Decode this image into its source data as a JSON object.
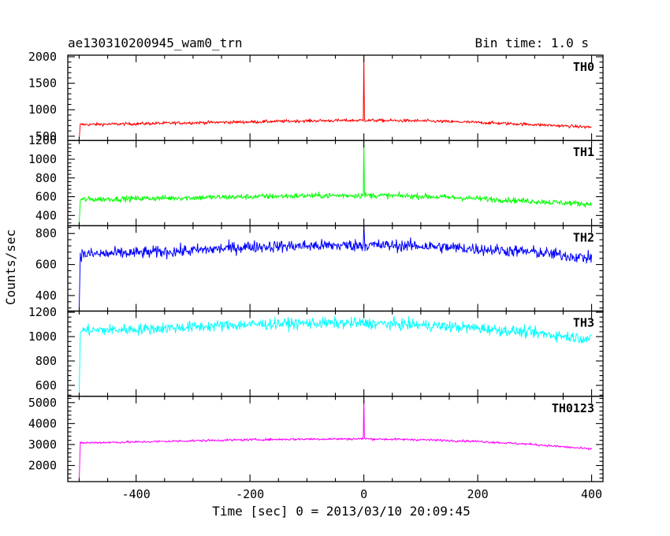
{
  "chart_data": {
    "type": "line",
    "title": "ae130310200945_wam0_trn",
    "subtitle": "Bin time: 1.0 s",
    "xlabel": "Time [sec] 0 = 2013/03/10 20:09:45",
    "ylabel": "Counts/sec",
    "xlim": [
      -520,
      420
    ],
    "xticks": [
      -400,
      -200,
      0,
      200,
      400
    ],
    "grid": false,
    "bin_time_s": 1.0,
    "panels": [
      {
        "name": "TH0",
        "color": "#ff0000",
        "ylim": [
          420,
          2030
        ],
        "yticks": [
          500,
          1000,
          1500,
          2000
        ],
        "data_start": -500,
        "start_value": 440,
        "profile": {
          "x": [
            -497,
            -400,
            -300,
            -200,
            -100,
            0,
            100,
            200,
            300,
            400
          ],
          "y": [
            720,
            735,
            755,
            770,
            790,
            800,
            790,
            760,
            720,
            670
          ]
        },
        "noise": 30,
        "spike": {
          "x": 0,
          "peak": 2030
        }
      },
      {
        "name": "TH1",
        "color": "#00ff00",
        "ylim": [
          290,
          1200
        ],
        "yticks": [
          400,
          600,
          800,
          1000,
          1200
        ],
        "data_start": -500,
        "start_value": 310,
        "profile": {
          "x": [
            -497,
            -400,
            -300,
            -200,
            -100,
            0,
            100,
            200,
            300,
            400
          ],
          "y": [
            570,
            580,
            590,
            600,
            610,
            615,
            605,
            580,
            550,
            520
          ]
        },
        "noise": 30,
        "spike": {
          "x": 0,
          "peak": 1200
        }
      },
      {
        "name": "TH2",
        "color": "#0000ff",
        "ylim": [
          300,
          850
        ],
        "yticks": [
          400,
          600,
          800
        ],
        "data_start": -500,
        "start_value": 310,
        "profile": {
          "x": [
            -497,
            -400,
            -300,
            -200,
            -100,
            0,
            100,
            200,
            300,
            400
          ],
          "y": [
            665,
            675,
            690,
            715,
            720,
            725,
            720,
            700,
            680,
            640
          ]
        },
        "noise": 38,
        "spike": {
          "x": 0,
          "peak": 850
        }
      },
      {
        "name": "TH3",
        "color": "#00ffff",
        "ylim": [
          510,
          1210
        ],
        "yticks": [
          600,
          800,
          1000,
          1200
        ],
        "data_start": -500,
        "start_value": 520,
        "profile": {
          "x": [
            -497,
            -400,
            -300,
            -200,
            -100,
            0,
            100,
            200,
            300,
            400
          ],
          "y": [
            1050,
            1060,
            1080,
            1100,
            1110,
            1110,
            1095,
            1070,
            1030,
            980
          ]
        },
        "noise": 45,
        "spike": null
      },
      {
        "name": "TH0123",
        "color": "#ff00ff",
        "ylim": [
          1230,
          5300
        ],
        "yticks": [
          2000,
          3000,
          4000,
          5000
        ],
        "data_start": -500,
        "start_value": 1260,
        "profile": {
          "x": [
            -497,
            -400,
            -300,
            -200,
            -100,
            0,
            100,
            200,
            300,
            400
          ],
          "y": [
            3080,
            3120,
            3180,
            3230,
            3260,
            3270,
            3230,
            3150,
            3000,
            2780
          ]
        },
        "noise": 55,
        "spike": {
          "x": 0,
          "peak": 5250
        }
      }
    ]
  }
}
